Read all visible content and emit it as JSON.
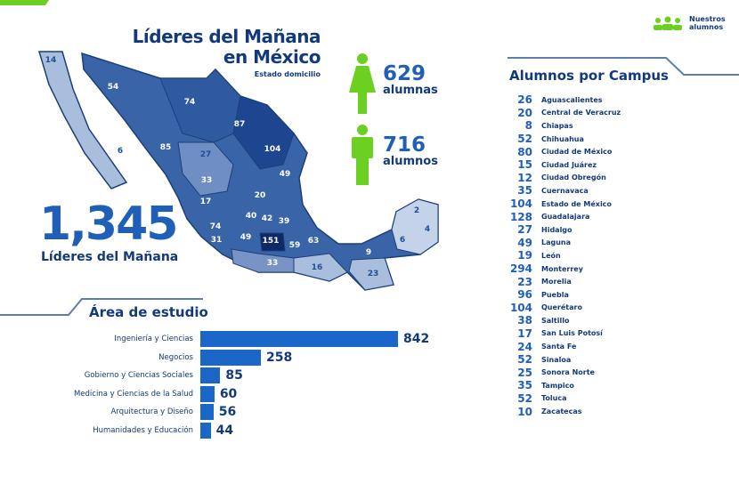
{
  "header": {
    "title_line1": "Líderes del Mañana",
    "title_line2": "en México",
    "subtitle": "Estado domicilio"
  },
  "brand": {
    "line1": "Nuestros",
    "line2": "alumnos",
    "icon": "people-group-icon",
    "color": "#6bd021"
  },
  "female": {
    "count": "629",
    "label": "alumnas",
    "icon": "female-person-icon"
  },
  "male": {
    "count": "716",
    "label": "alumnos",
    "icon": "male-person-icon"
  },
  "total": {
    "count": "1,345",
    "label": "Líderes del Mañana"
  },
  "map_values": [
    "14",
    "54",
    "6",
    "74",
    "85",
    "87",
    "104",
    "27",
    "49",
    "33",
    "20",
    "17",
    "40",
    "42",
    "39",
    "74",
    "31",
    "49",
    "151",
    "59",
    "63",
    "33",
    "16",
    "9",
    "23",
    "2",
    "4",
    "6"
  ],
  "campus": {
    "title": "Alumnos por Campus",
    "items": [
      {
        "value": "26",
        "name": "Aguascalientes"
      },
      {
        "value": "20",
        "name": "Central de Veracruz"
      },
      {
        "value": "8",
        "name": "Chiapas"
      },
      {
        "value": "52",
        "name": "Chihuahua"
      },
      {
        "value": "80",
        "name": "Ciudad de México"
      },
      {
        "value": "15",
        "name": "Ciudad Juárez"
      },
      {
        "value": "12",
        "name": "Ciudad Obregón"
      },
      {
        "value": "35",
        "name": "Cuernavaca"
      },
      {
        "value": "104",
        "name": "Estado de México"
      },
      {
        "value": "128",
        "name": "Guadalajara"
      },
      {
        "value": "27",
        "name": "Hidalgo"
      },
      {
        "value": "49",
        "name": "Laguna"
      },
      {
        "value": "19",
        "name": "León"
      },
      {
        "value": "294",
        "name": "Monterrey"
      },
      {
        "value": "23",
        "name": "Morelia"
      },
      {
        "value": "96",
        "name": "Puebla"
      },
      {
        "value": "104",
        "name": "Querétaro"
      },
      {
        "value": "38",
        "name": "Saltillo"
      },
      {
        "value": "17",
        "name": "San Luis Potosí"
      },
      {
        "value": "24",
        "name": "Santa Fe"
      },
      {
        "value": "52",
        "name": "Sinaloa"
      },
      {
        "value": "25",
        "name": "Sonora Norte"
      },
      {
        "value": "35",
        "name": "Tampico"
      },
      {
        "value": "52",
        "name": "Toluca"
      },
      {
        "value": "10",
        "name": "Zacatecas"
      }
    ]
  },
  "chart_data": {
    "type": "bar",
    "title": "Área de estudio",
    "orientation": "horizontal",
    "categories": [
      "Ingeniería y Ciencias",
      "Negocios",
      "Gobierno y Ciencias Sociales",
      "Medicina y Ciencias de la Salud",
      "Arquitectura y Diseño",
      "Humanidades y Educación"
    ],
    "values": [
      842,
      258,
      85,
      60,
      56,
      44
    ],
    "bar_color": "#1a66c9"
  }
}
